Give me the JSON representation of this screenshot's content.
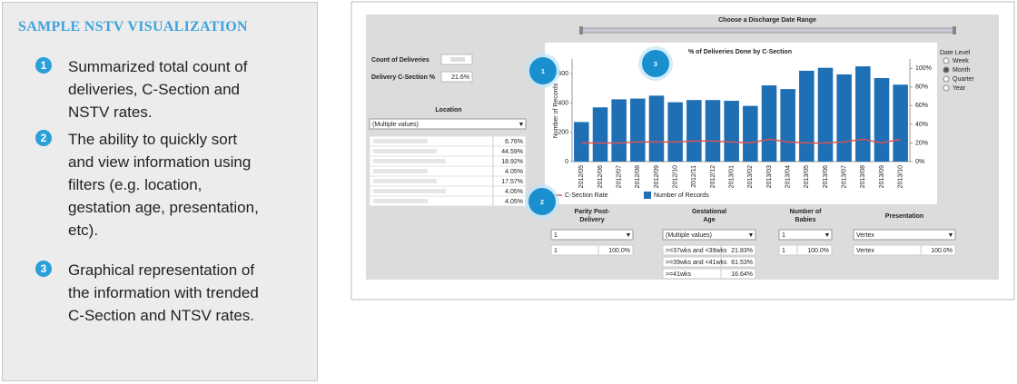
{
  "sidebar": {
    "title": "SAMPLE NSTV VISUALIZATION",
    "items": [
      {
        "marker": "1",
        "text": "Summarized total count of deliveries, C-Section and NSTV rates."
      },
      {
        "marker": "2",
        "text": "The ability to quickly sort and view information using filters (e.g. location, gestation age, presentation, etc)."
      },
      {
        "marker": "3",
        "text": "Graphical representation of the information with trended C-Section and NTSV rates."
      }
    ]
  },
  "dashboard": {
    "date_range_label": "Choose a Discharge Date Range",
    "kpis": [
      {
        "label": "Count of Deliveries"
      },
      {
        "label": "Delivery C-Section %",
        "value": "21.6%"
      }
    ],
    "location": {
      "title": "Location",
      "dropdown": "(Multiple values)",
      "percentages": [
        "6.76%",
        "44.59%",
        "18.92%",
        "4.05%",
        "17.57%",
        "4.05%",
        "4.05%"
      ]
    },
    "chart": {
      "type": "bar",
      "title": "% of Deliveries Done by C-Section",
      "y_label": "Number of Records",
      "categories": [
        "2012/05",
        "2012/06",
        "2012/07",
        "2012/08",
        "2012/09",
        "2012/10",
        "2012/11",
        "2012/12",
        "2013/01",
        "2013/02",
        "2013/03",
        "2013/04",
        "2013/05",
        "2013/06",
        "2013/07",
        "2013/08",
        "2013/09",
        "2013/10"
      ],
      "series": [
        {
          "name": "Number of Records",
          "color": "#1f6fb5",
          "values": [
            270,
            370,
            425,
            430,
            450,
            405,
            420,
            420,
            415,
            380,
            520,
            495,
            620,
            640,
            595,
            650,
            570,
            525
          ]
        },
        {
          "name": "C-Section Rate",
          "color": "#d9534f",
          "type": "line",
          "axis": "y2",
          "values": [
            20,
            20,
            20,
            21,
            21,
            21,
            22,
            22,
            21,
            20,
            24,
            21,
            20,
            20,
            21,
            24,
            20,
            24
          ]
        }
      ],
      "ylim": [
        0,
        700
      ],
      "yticks": [
        0,
        200,
        400,
        600
      ],
      "y2lim": [
        0,
        110
      ],
      "y2ticks": [
        {
          "value": 0,
          "label": "0%"
        },
        {
          "value": 20,
          "label": "20%"
        },
        {
          "value": 40,
          "label": "40%"
        },
        {
          "value": 60,
          "label": "60%"
        },
        {
          "value": 80,
          "label": "80%"
        },
        {
          "value": 100,
          "label": "100%"
        }
      ],
      "legend_order": [
        1,
        0
      ]
    },
    "date_level": {
      "title": "Date Level",
      "options": [
        "Week",
        "Month",
        "Quarter",
        "Year"
      ],
      "selected": 1
    },
    "filters": [
      {
        "title_lines": [
          "Parity Post-",
          "Delivery"
        ],
        "dropdown": "1",
        "rows": [
          [
            "1",
            "100.0%"
          ]
        ]
      },
      {
        "title_lines": [
          "Gestational",
          "Age"
        ],
        "dropdown": "(Multiple values)",
        "rows": [
          [
            ">=37wks and <39wks",
            "21.83%"
          ],
          [
            ">=39wks and <41wks",
            "61.53%"
          ],
          [
            ">=41wks",
            "16.64%"
          ]
        ]
      },
      {
        "title_lines": [
          "Number of",
          "Babies"
        ],
        "dropdown": "1",
        "rows": [
          [
            "1",
            "100.0%"
          ]
        ]
      },
      {
        "title_lines": [
          "Presentation"
        ],
        "dropdown": "Vertex",
        "rows": [
          [
            "Vertex",
            "100.0%"
          ]
        ]
      }
    ],
    "callouts": [
      "1",
      "2",
      "3"
    ]
  }
}
